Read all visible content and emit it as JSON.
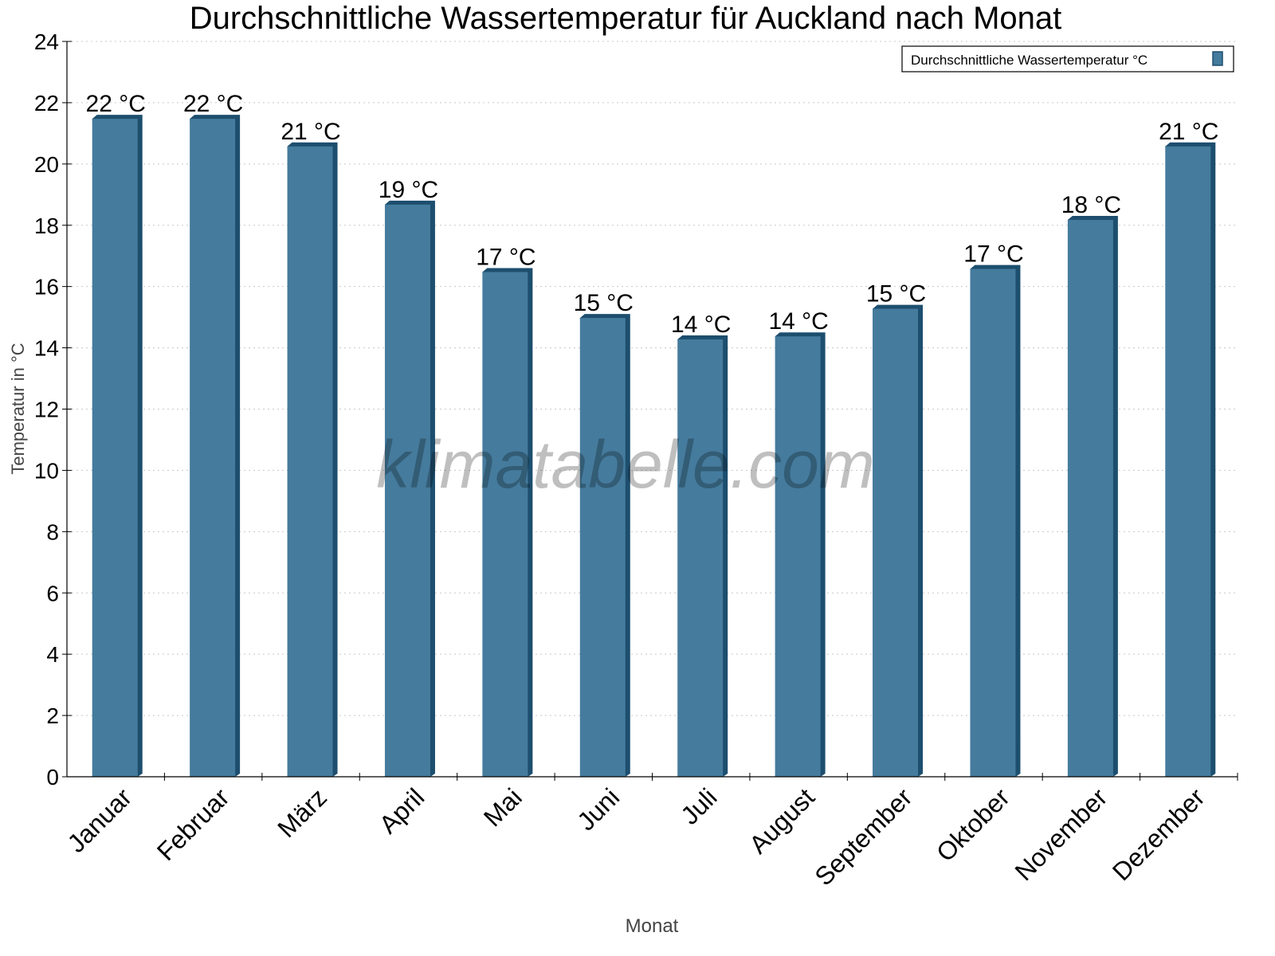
{
  "chart_data": {
    "type": "bar",
    "title": "Durchschnittliche Wassertemperatur für Auckland nach Monat",
    "xlabel": "Monat",
    "ylabel": "Temperatur in °C",
    "categories": [
      "Januar",
      "Februar",
      "März",
      "April",
      "Mai",
      "Juni",
      "Juli",
      "August",
      "September",
      "Oktober",
      "November",
      "Dezember"
    ],
    "series": [
      {
        "name": "Durchschnittliche Wassertemperatur °C",
        "values": [
          21.5,
          21.5,
          20.6,
          18.7,
          16.5,
          15.0,
          14.3,
          14.4,
          15.3,
          16.6,
          18.2,
          20.6
        ],
        "data_labels": [
          "22 °C",
          "22 °C",
          "21 °C",
          "19 °C",
          "17 °C",
          "15 °C",
          "14 °C",
          "14 °C",
          "15 °C",
          "17 °C",
          "18 °C",
          "21 °C"
        ]
      }
    ],
    "ylim": [
      0,
      24
    ],
    "yticks": [
      0,
      2,
      4,
      6,
      8,
      10,
      12,
      14,
      16,
      18,
      20,
      22,
      24
    ],
    "grid": true,
    "legend_position": "top-right",
    "colors": {
      "bar": "#457b9d",
      "bar_side": "#1d4e6e",
      "grid": "#c8c8c8"
    }
  },
  "watermark": "klimatabelle.com"
}
